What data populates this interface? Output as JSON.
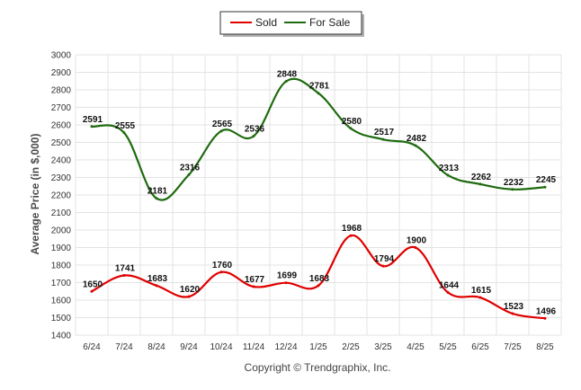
{
  "chart_data": {
    "type": "line",
    "title": "",
    "xlabel": "",
    "ylabel": "Average Price (in $,000)",
    "categories": [
      "6/24",
      "7/24",
      "8/24",
      "9/24",
      "10/24",
      "11/24",
      "12/24",
      "1/25",
      "2/25",
      "3/25",
      "4/25",
      "5/25",
      "6/25",
      "7/25",
      "8/25"
    ],
    "yticks": [
      1400,
      1500,
      1600,
      1700,
      1800,
      1900,
      2000,
      2100,
      2200,
      2300,
      2400,
      2500,
      2600,
      2700,
      2800,
      2900,
      3000
    ],
    "ylim": [
      1400,
      3000
    ],
    "grid": true,
    "legend": "top-center",
    "series": [
      {
        "name": "Sold",
        "color": "#e00000",
        "values": [
          1650,
          1741,
          1683,
          1620,
          1760,
          1677,
          1699,
          1683,
          1968,
          1794,
          1900,
          1644,
          1615,
          1523,
          1496
        ]
      },
      {
        "name": "For Sale",
        "color": "#1f6b0f",
        "values": [
          2591,
          2555,
          2181,
          2316,
          2565,
          2536,
          2848,
          2781,
          2580,
          2517,
          2482,
          2313,
          2262,
          2232,
          2245
        ]
      }
    ]
  },
  "footer": {
    "copyright": "Copyright © Trendgraphix, Inc."
  }
}
